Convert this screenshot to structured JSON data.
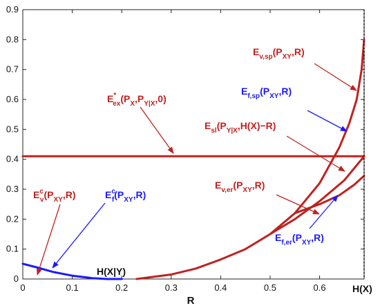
{
  "chart_data": {
    "type": "line",
    "xlabel": "R",
    "ylabel": "",
    "xlim": [
      0,
      0.69
    ],
    "ylim": [
      0,
      0.9
    ],
    "xticks": [
      "0",
      "0.1",
      "0.2",
      "0.3",
      "0.4",
      "0.5",
      "0.6"
    ],
    "yticks": [
      "0",
      "0.1",
      "0.2",
      "0.3",
      "0.4",
      "0.5",
      "0.6",
      "0.7",
      "0.8",
      "0.9"
    ],
    "grid": false,
    "colors": {
      "red": "#c0211f",
      "blue": "#1a1aff",
      "dark_red": "#a01c1c"
    },
    "series": [
      {
        "color": "#c0211f",
        "x": [
          0,
          0.69
        ],
        "y": [
          0.41,
          0.41
        ]
      },
      {
        "color": "#c0211f",
        "x": [
          0.23,
          0.3,
          0.35,
          0.4,
          0.45,
          0.5,
          0.55,
          0.6,
          0.64,
          0.66,
          0.675,
          0.685,
          0.69
        ],
        "y": [
          0,
          0.015,
          0.035,
          0.065,
          0.1,
          0.15,
          0.22,
          0.32,
          0.44,
          0.52,
          0.6,
          0.7,
          0.8
        ]
      },
      {
        "color": "#c0211f",
        "x": [
          0.5,
          0.55,
          0.6,
          0.65,
          0.69
        ],
        "y": [
          0.15,
          0.2,
          0.26,
          0.33,
          0.41
        ]
      },
      {
        "color": "#c0211f",
        "x": [
          0.55,
          0.6,
          0.64,
          0.67,
          0.69
        ],
        "y": [
          0.22,
          0.25,
          0.28,
          0.315,
          0.345
        ]
      },
      {
        "color": "#1a1aff",
        "x": [
          0,
          0.03,
          0.06,
          0.1,
          0.14,
          0.17,
          0.2
        ],
        "y": [
          0.051,
          0.038,
          0.024,
          0.011,
          0.003,
          0,
          0
        ]
      }
    ],
    "annotations": [
      {
        "id": "ev_sp",
        "color": "#c0211f",
        "text": "E",
        "sub": "v,sp",
        "rest": "(P",
        "sub2": "XY",
        "rest2": ",R)"
      },
      {
        "id": "ef_sp",
        "color": "#1a1aff",
        "text": "E",
        "sub": "f,sp",
        "rest": "(P",
        "sub2": "XY",
        "rest2": ",R)"
      },
      {
        "id": "eex",
        "color": "#c0211f",
        "text": "E",
        "sup": "*",
        "sub": "ex",
        "rest": "(P",
        "sub2": "X",
        "rest2": ",P",
        "sub3": "Y|X",
        "rest3": ",0)"
      },
      {
        "id": "esl",
        "color": "#c0211f",
        "text": "E",
        "sub": "sl",
        "rest": "(P",
        "sub2": "Y|X",
        "rest2": ",H(X)−R)"
      },
      {
        "id": "ev_er",
        "color": "#c0211f",
        "text": "E",
        "sub": "v,er",
        "rest": "(P",
        "sub2": "XY",
        "rest2": ",R)"
      },
      {
        "id": "ef_er",
        "color": "#1a1aff",
        "text": "E",
        "sub": "f,er",
        "rest": "(P",
        "sub2": "XY",
        "rest2": ",R)"
      },
      {
        "id": "evc",
        "color": "#c0211f",
        "text": "E",
        "sup": "c",
        "sub": "v",
        "rest": "(P",
        "sub2": "XY",
        "rest2": ",R)"
      },
      {
        "id": "efc",
        "color": "#1a1aff",
        "text": "E",
        "sup": "c",
        "sub": "f",
        "rest": "(P",
        "sub2": "XY",
        "rest2": ",R)"
      }
    ],
    "markers": {
      "hxy": "H(X|Y)",
      "hx": "H(X)"
    }
  }
}
